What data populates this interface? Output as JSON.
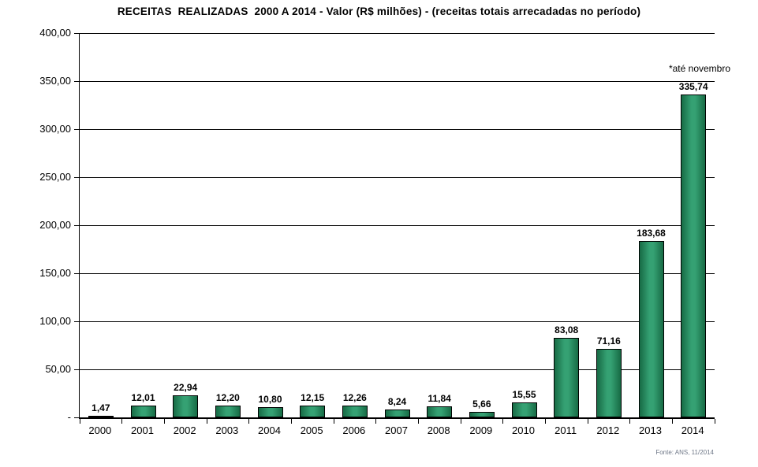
{
  "chart_data": {
    "type": "bar",
    "title": "RECEITAS  REALIZADAS  2000 A 2014 - Valor (R$ milhões) - (receitas totais arrecadadas no período)",
    "categories": [
      "2000",
      "2001",
      "2002",
      "2003",
      "2004",
      "2005",
      "2006",
      "2007",
      "2008",
      "2009",
      "2010",
      "2011",
      "2012",
      "2013",
      "2014"
    ],
    "values": [
      1.47,
      12.01,
      22.94,
      12.2,
      10.8,
      12.15,
      12.26,
      8.24,
      11.84,
      5.66,
      15.55,
      83.08,
      71.16,
      183.68,
      335.74
    ],
    "value_labels": [
      "1,47",
      "12,01",
      "22,94",
      "12,20",
      "10,80",
      "12,15",
      "12,26",
      "8,24",
      "11,84",
      "5,66",
      "15,55",
      "83,08",
      "71,16",
      "183,68",
      "335,74"
    ],
    "xlabel": "",
    "ylabel": "",
    "ylim": [
      0,
      400
    ],
    "ytick_values": [
      400,
      350,
      300,
      250,
      200,
      150,
      100,
      50,
      0
    ],
    "ytick_labels": [
      "400,00",
      "350,00",
      "300,00",
      "250,00",
      "200,00",
      "150,00",
      "100,00",
      "50,00",
      "-"
    ],
    "grid": true,
    "legend": "none",
    "annotation": "*até novembro",
    "source": "Fonte: ANS, 11/2014",
    "colors": {
      "bar_center": "#35a173",
      "bar_edge_shade": "#176b45",
      "bar_border": "#000000",
      "axis": "#000000",
      "background": "#ffffff",
      "source_text": "#6e7787"
    }
  }
}
